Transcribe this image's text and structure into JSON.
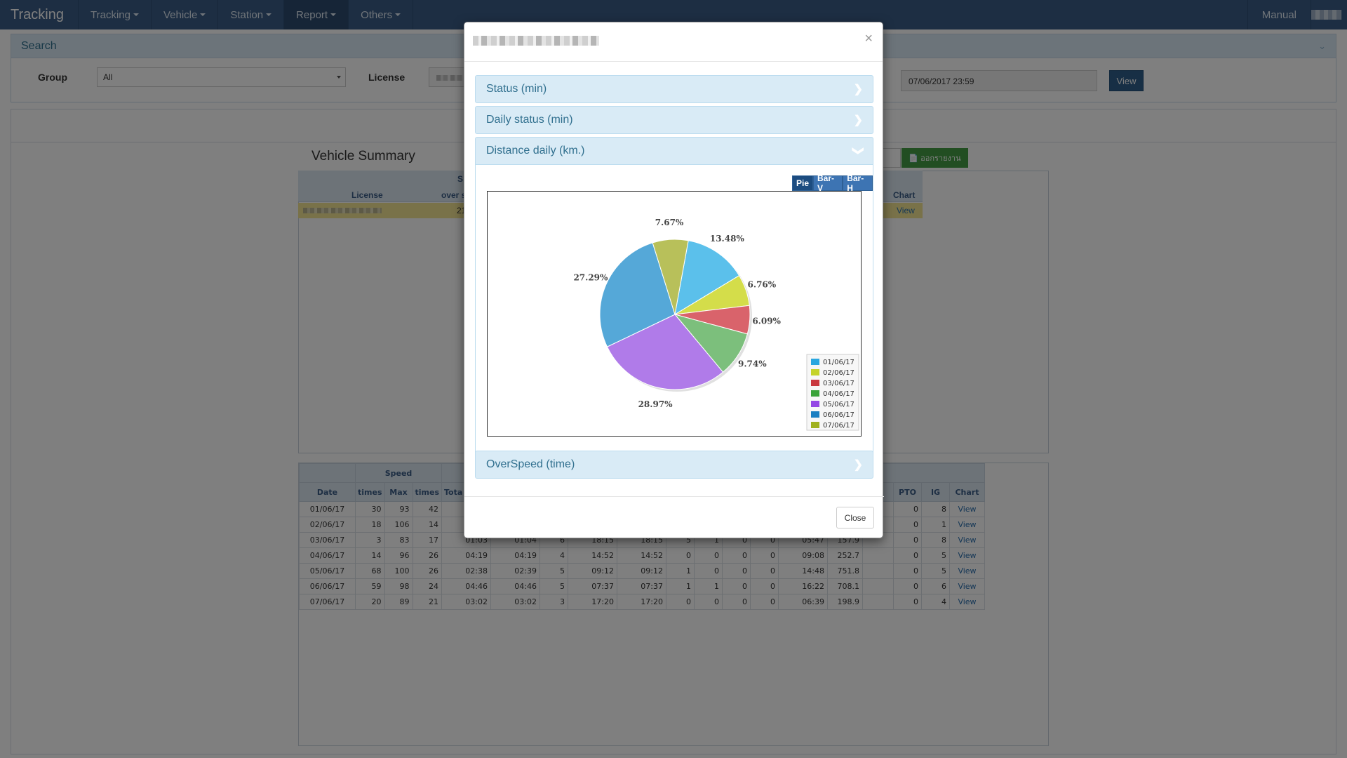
{
  "navbar": {
    "brand": "Tracking",
    "items": [
      "Tracking",
      "Vehicle",
      "Station",
      "Report",
      "Others"
    ],
    "active": "Report",
    "right": [
      "Manual"
    ]
  },
  "search": {
    "title": "Search",
    "group_label": "Group",
    "group_value": "All",
    "license_label": "License",
    "end_date": "07/06/2017 23:59",
    "view_label": "View"
  },
  "summary": {
    "title": "Vehicle Summary",
    "export_label": "ออกรายงาน",
    "col_license": "License",
    "col_over": "over s",
    "col_s": "S",
    "col_chart": "Chart",
    "row_value": "21",
    "row_view": "View"
  },
  "daily_table": {
    "group_speed": "Speed",
    "headers": [
      "Date",
      "times",
      "Max",
      "times",
      "Tota",
      "PTO",
      "IG",
      "Chart"
    ],
    "rows": [
      {
        "date": "01/06/17",
        "a": "30",
        "b": "93",
        "c": "42",
        "d": "",
        "e": "",
        "f": "",
        "g": "",
        "h": "",
        "i": "",
        "j": "",
        "k": "",
        "l": "",
        "m": "",
        "n": "",
        "pto": "0",
        "ig": "8",
        "view": "View"
      },
      {
        "date": "02/06/17",
        "a": "18",
        "b": "106",
        "c": "14",
        "d": "",
        "e": "",
        "f": "",
        "g": "",
        "h": "",
        "i": "",
        "j": "",
        "k": "",
        "l": "",
        "m": "",
        "n": "",
        "pto": "0",
        "ig": "1",
        "view": "View"
      },
      {
        "date": "03/06/17",
        "a": "3",
        "b": "83",
        "c": "17",
        "d": "01:03",
        "e": "01:04",
        "f": "6",
        "g": "18:15",
        "h": "18:15",
        "i": "5",
        "j": "1",
        "k": "0",
        "l": "0",
        "m": "05:47",
        "n": "157.9",
        "pto": "0",
        "ig": "8",
        "view": "View"
      },
      {
        "date": "04/06/17",
        "a": "14",
        "b": "96",
        "c": "26",
        "d": "04:19",
        "e": "04:19",
        "f": "4",
        "g": "14:52",
        "h": "14:52",
        "i": "0",
        "j": "0",
        "k": "0",
        "l": "0",
        "m": "09:08",
        "n": "252.7",
        "pto": "0",
        "ig": "5",
        "view": "View"
      },
      {
        "date": "05/06/17",
        "a": "68",
        "b": "100",
        "c": "26",
        "d": "02:38",
        "e": "02:39",
        "f": "5",
        "g": "09:12",
        "h": "09:12",
        "i": "1",
        "j": "0",
        "k": "0",
        "l": "0",
        "m": "14:48",
        "n": "751.8",
        "pto": "0",
        "ig": "5",
        "view": "View"
      },
      {
        "date": "06/06/17",
        "a": "59",
        "b": "98",
        "c": "24",
        "d": "04:46",
        "e": "04:46",
        "f": "5",
        "g": "07:37",
        "h": "07:37",
        "i": "1",
        "j": "1",
        "k": "0",
        "l": "0",
        "m": "16:22",
        "n": "708.1",
        "pto": "0",
        "ig": "6",
        "view": "View"
      },
      {
        "date": "07/06/17",
        "a": "20",
        "b": "89",
        "c": "21",
        "d": "03:02",
        "e": "03:02",
        "f": "3",
        "g": "17:20",
        "h": "17:20",
        "i": "0",
        "j": "0",
        "k": "0",
        "l": "0",
        "m": "06:39",
        "n": "198.9",
        "pto": "0",
        "ig": "4",
        "view": "View"
      }
    ]
  },
  "modal": {
    "close_x": "×",
    "sections": [
      "Status (min)",
      "Daily status (min)",
      "Distance daily (km.)",
      "OverSpeed (time)"
    ],
    "chart_buttons": [
      "Pie",
      "Bar-V",
      "Bar-H"
    ],
    "active_chart": "Pie",
    "close_label": "Close"
  },
  "chart_data": {
    "type": "pie",
    "title": "",
    "legend_placement": "bottom-right",
    "categories": [
      "01/06/17",
      "02/06/17",
      "03/06/17",
      "04/06/17",
      "05/06/17",
      "06/06/17",
      "07/06/17"
    ],
    "values": [
      13.48,
      6.76,
      6.09,
      9.74,
      28.97,
      27.29,
      7.67
    ],
    "labels": [
      "13.48%",
      "6.76%",
      "6.09%",
      "9.74%",
      "28.97%",
      "27.29%",
      "7.67%"
    ],
    "colors": [
      "#5bc0eb",
      "#d4dd4a",
      "#d9636b",
      "#7cbf7c",
      "#b07be9",
      "#55a8d8",
      "#b8c05a"
    ],
    "legend_colors": [
      "#2aa7e0",
      "#c5d32a",
      "#c9383f",
      "#3aa33a",
      "#9447e5",
      "#1a7fc2",
      "#9fb11e"
    ]
  }
}
